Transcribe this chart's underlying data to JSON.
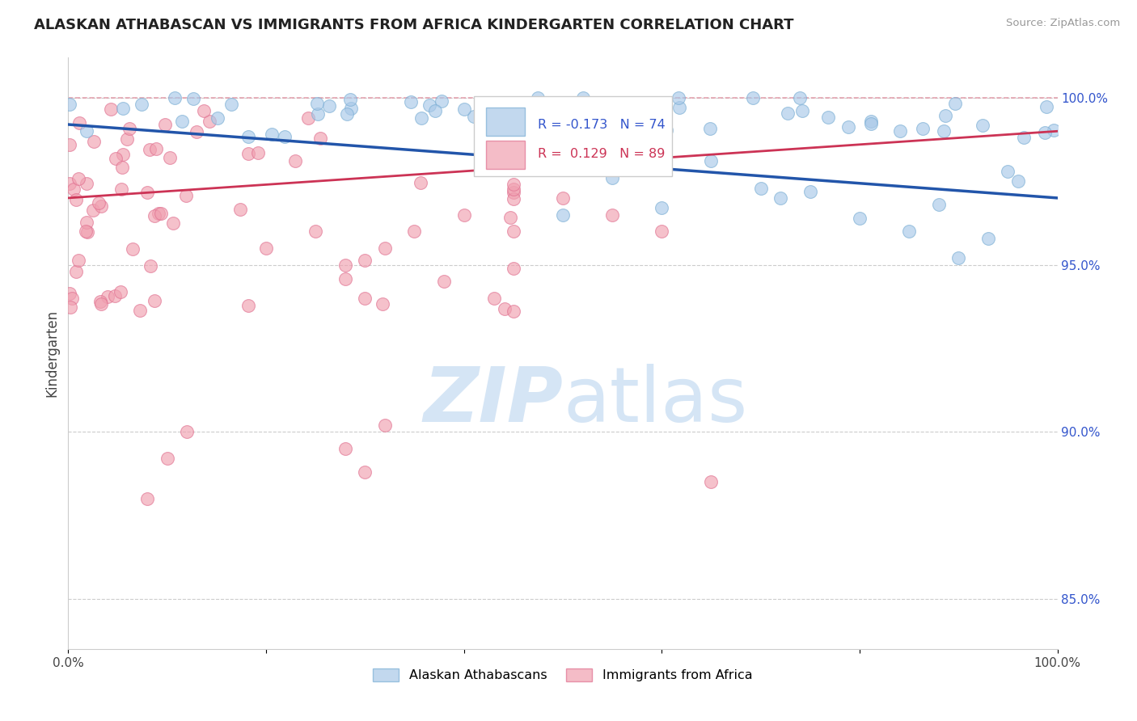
{
  "title": "ALASKAN ATHABASCAN VS IMMIGRANTS FROM AFRICA KINDERGARTEN CORRELATION CHART",
  "source": "Source: ZipAtlas.com",
  "ylabel": "Kindergarten",
  "legend_blue_label": "Alaskan Athabascans",
  "legend_pink_label": "Immigrants from Africa",
  "r_blue": -0.173,
  "n_blue": 74,
  "r_pink": 0.129,
  "n_pink": 89,
  "blue_color": "#a8c8e8",
  "blue_edge_color": "#7aaed4",
  "pink_color": "#f0a0b0",
  "pink_edge_color": "#e07090",
  "blue_line_color": "#2255aa",
  "pink_line_color": "#cc3355",
  "dashed_line_color": "#e090a0",
  "grid_color": "#cccccc",
  "right_label_color": "#3355cc",
  "watermark_color": "#d5e5f5",
  "ylabel_right_labels": [
    "100.0%",
    "95.0%",
    "90.0%",
    "85.0%"
  ],
  "ylabel_right_values": [
    1.0,
    0.95,
    0.9,
    0.85
  ],
  "xlim": [
    0.0,
    1.0
  ],
  "ylim": [
    0.835,
    1.012
  ],
  "blue_line_x0": 0.0,
  "blue_line_y0": 0.992,
  "blue_line_x1": 1.0,
  "blue_line_y1": 0.97,
  "pink_line_x0": 0.0,
  "pink_line_y0": 0.97,
  "pink_line_x1": 1.0,
  "pink_line_y1": 0.99
}
